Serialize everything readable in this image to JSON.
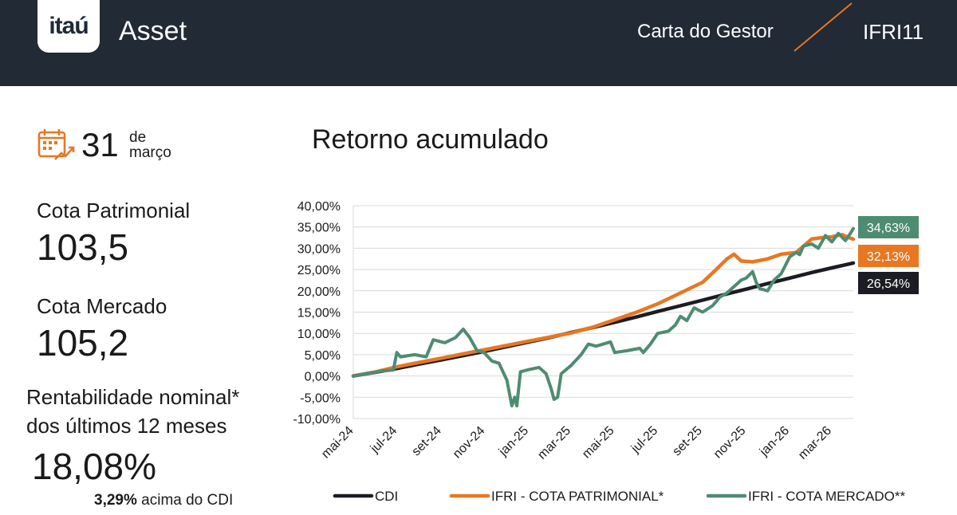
{
  "header": {
    "logo_text": "itaú",
    "brand": "Asset",
    "report": "Carta do Gestor",
    "ticker": "IFRI11",
    "accent_color": "#e87722",
    "bar_color": "#222a35"
  },
  "date": {
    "day": "31",
    "de": "de",
    "month": "março",
    "icon": "calendar-icon"
  },
  "metrics": {
    "cota_patrimonial_label": "Cota Patrimonial",
    "cota_patrimonial_value": "103,5",
    "cota_mercado_label": "Cota Mercado",
    "cota_mercado_value": "105,2",
    "rent_label_line1": "Rentabilidade nominal*",
    "rent_label_line2": "dos últimos 12 meses",
    "rent_value": "18,08%",
    "cdi_excess": "3,29%",
    "cdi_excess_text": " acima do CDI"
  },
  "chart_data": {
    "type": "line",
    "title": "Retorno acumulado",
    "ylim": [
      -10,
      40
    ],
    "y_ticks": [
      -10,
      -5,
      0,
      5,
      10,
      15,
      20,
      25,
      30,
      35,
      40
    ],
    "y_tick_labels": [
      "-10,00%",
      "-5,00%",
      "0,00%",
      "5,00%",
      "10,00%",
      "15,00%",
      "20,00%",
      "25,00%",
      "30,00%",
      "35,00%",
      "40,00%"
    ],
    "x_range": [
      "2024-04-30",
      "2026-03-31"
    ],
    "x_ticks": [
      "2024-05-01",
      "2024-07-01",
      "2024-09-01",
      "2024-11-01",
      "2025-01-01",
      "2025-03-01",
      "2025-05-01",
      "2025-07-01",
      "2025-09-01",
      "2025-11-01",
      "2026-01-01",
      "2026-03-01"
    ],
    "x_tick_labels": [
      "mai-24",
      "jul-24",
      "set-24",
      "nov-24",
      "jan-25",
      "mar-25",
      "mai-25",
      "jul-25",
      "set-25",
      "nov-25",
      "jan-26",
      "mar-26"
    ],
    "grid": true,
    "legend_position": "bottom",
    "series": [
      {
        "name": "CDI",
        "color": "#1c1c24",
        "end_label": "26,54%",
        "points": [
          [
            "2024-04-30",
            0
          ],
          [
            "2024-06-01",
            0.9
          ],
          [
            "2024-07-01",
            1.8
          ],
          [
            "2024-08-01",
            2.8
          ],
          [
            "2024-09-01",
            3.8
          ],
          [
            "2024-10-01",
            4.8
          ],
          [
            "2024-11-01",
            5.8
          ],
          [
            "2024-12-01",
            6.9
          ],
          [
            "2025-01-01",
            8.0
          ],
          [
            "2025-02-01",
            9.1
          ],
          [
            "2025-03-01",
            10.2
          ],
          [
            "2025-04-01",
            11.4
          ],
          [
            "2025-05-01",
            12.6
          ],
          [
            "2025-06-01",
            13.9
          ],
          [
            "2025-07-01",
            15.2
          ],
          [
            "2025-08-01",
            16.5
          ],
          [
            "2025-09-01",
            17.8
          ],
          [
            "2025-10-01",
            19.1
          ],
          [
            "2025-11-01",
            20.4
          ],
          [
            "2025-12-01",
            21.7
          ],
          [
            "2026-01-01",
            23.0
          ],
          [
            "2026-02-01",
            24.3
          ],
          [
            "2026-03-01",
            25.4
          ],
          [
            "2026-03-31",
            26.54
          ]
        ]
      },
      {
        "name": "IFRI - COTA PATRIMONIAL*",
        "color": "#e87722",
        "end_label": "32,13%",
        "points": [
          [
            "2024-04-30",
            0
          ],
          [
            "2024-06-01",
            1.0
          ],
          [
            "2024-07-01",
            2.2
          ],
          [
            "2024-08-01",
            3.2
          ],
          [
            "2024-09-01",
            4.2
          ],
          [
            "2024-10-01",
            5.2
          ],
          [
            "2024-11-01",
            6.2
          ],
          [
            "2024-12-01",
            7.2
          ],
          [
            "2025-01-01",
            8.2
          ],
          [
            "2025-02-01",
            9.2
          ],
          [
            "2025-03-01",
            10.1
          ],
          [
            "2025-04-01",
            11.5
          ],
          [
            "2025-05-01",
            13.2
          ],
          [
            "2025-06-01",
            15.0
          ],
          [
            "2025-07-01",
            17.0
          ],
          [
            "2025-08-01",
            19.5
          ],
          [
            "2025-09-01",
            22.0
          ],
          [
            "2025-09-20",
            25.0
          ],
          [
            "2025-10-05",
            27.5
          ],
          [
            "2025-10-15",
            28.6
          ],
          [
            "2025-10-25",
            27.0
          ],
          [
            "2025-11-10",
            26.8
          ],
          [
            "2025-12-01",
            27.5
          ],
          [
            "2025-12-20",
            28.6
          ],
          [
            "2026-01-10",
            29.0
          ],
          [
            "2026-02-01",
            32.2
          ],
          [
            "2026-02-15",
            32.5
          ],
          [
            "2026-03-01",
            32.7
          ],
          [
            "2026-03-15",
            33.2
          ],
          [
            "2026-03-25",
            32.5
          ],
          [
            "2026-03-31",
            32.13
          ]
        ]
      },
      {
        "name": "IFRI - COTA MERCADO**",
        "color": "#4e8c72",
        "end_label": "34,63%",
        "points": [
          [
            "2024-04-30",
            0
          ],
          [
            "2024-05-20",
            0.6
          ],
          [
            "2024-06-10",
            1.2
          ],
          [
            "2024-06-25",
            1.4
          ],
          [
            "2024-06-30",
            5.5
          ],
          [
            "2024-07-05",
            4.5
          ],
          [
            "2024-07-25",
            5.0
          ],
          [
            "2024-08-10",
            4.5
          ],
          [
            "2024-08-20",
            8.5
          ],
          [
            "2024-09-05",
            7.8
          ],
          [
            "2024-09-20",
            9.0
          ],
          [
            "2024-10-01",
            11.0
          ],
          [
            "2024-10-10",
            9.0
          ],
          [
            "2024-10-20",
            6.0
          ],
          [
            "2024-10-30",
            5.5
          ],
          [
            "2024-11-10",
            3.5
          ],
          [
            "2024-11-20",
            3.0
          ],
          [
            "2024-12-01",
            -1.0
          ],
          [
            "2024-12-08",
            -7.0
          ],
          [
            "2024-12-12",
            -5.0
          ],
          [
            "2024-12-15",
            -7.0
          ],
          [
            "2024-12-20",
            1.0
          ],
          [
            "2025-01-01",
            1.5
          ],
          [
            "2025-01-15",
            2.0
          ],
          [
            "2025-01-25",
            0.5
          ],
          [
            "2025-02-01",
            -3.0
          ],
          [
            "2025-02-05",
            -5.5
          ],
          [
            "2025-02-10",
            -5.0
          ],
          [
            "2025-02-15",
            0.5
          ],
          [
            "2025-03-01",
            2.5
          ],
          [
            "2025-03-15",
            5.0
          ],
          [
            "2025-03-25",
            7.5
          ],
          [
            "2025-04-05",
            7.0
          ],
          [
            "2025-04-15",
            7.5
          ],
          [
            "2025-04-25",
            8.0
          ],
          [
            "2025-05-01",
            5.5
          ],
          [
            "2025-05-20",
            6.0
          ],
          [
            "2025-06-05",
            6.5
          ],
          [
            "2025-06-10",
            5.5
          ],
          [
            "2025-06-20",
            7.5
          ],
          [
            "2025-06-30",
            10.0
          ],
          [
            "2025-07-15",
            10.5
          ],
          [
            "2025-07-25",
            12.0
          ],
          [
            "2025-08-01",
            14.0
          ],
          [
            "2025-08-10",
            13.0
          ],
          [
            "2025-08-20",
            16.0
          ],
          [
            "2025-09-01",
            15.0
          ],
          [
            "2025-09-15",
            16.5
          ],
          [
            "2025-09-25",
            18.5
          ],
          [
            "2025-10-05",
            19.5
          ],
          [
            "2025-10-15",
            21.0
          ],
          [
            "2025-10-25",
            22.5
          ],
          [
            "2025-11-01",
            23.0
          ],
          [
            "2025-11-10",
            24.5
          ],
          [
            "2025-11-15",
            22.0
          ],
          [
            "2025-11-20",
            20.5
          ],
          [
            "2025-12-01",
            20.0
          ],
          [
            "2025-12-10",
            22.5
          ],
          [
            "2025-12-20",
            24.0
          ],
          [
            "2026-01-01",
            28.0
          ],
          [
            "2026-01-10",
            29.0
          ],
          [
            "2026-01-15",
            28.5
          ],
          [
            "2026-01-20",
            30.5
          ],
          [
            "2026-02-01",
            31.0
          ],
          [
            "2026-02-10",
            30.0
          ],
          [
            "2026-02-20",
            33.0
          ],
          [
            "2026-03-01",
            31.5
          ],
          [
            "2026-03-10",
            33.5
          ],
          [
            "2026-03-20",
            31.8
          ],
          [
            "2026-03-25",
            33.0
          ],
          [
            "2026-03-31",
            34.63
          ]
        ]
      }
    ]
  }
}
